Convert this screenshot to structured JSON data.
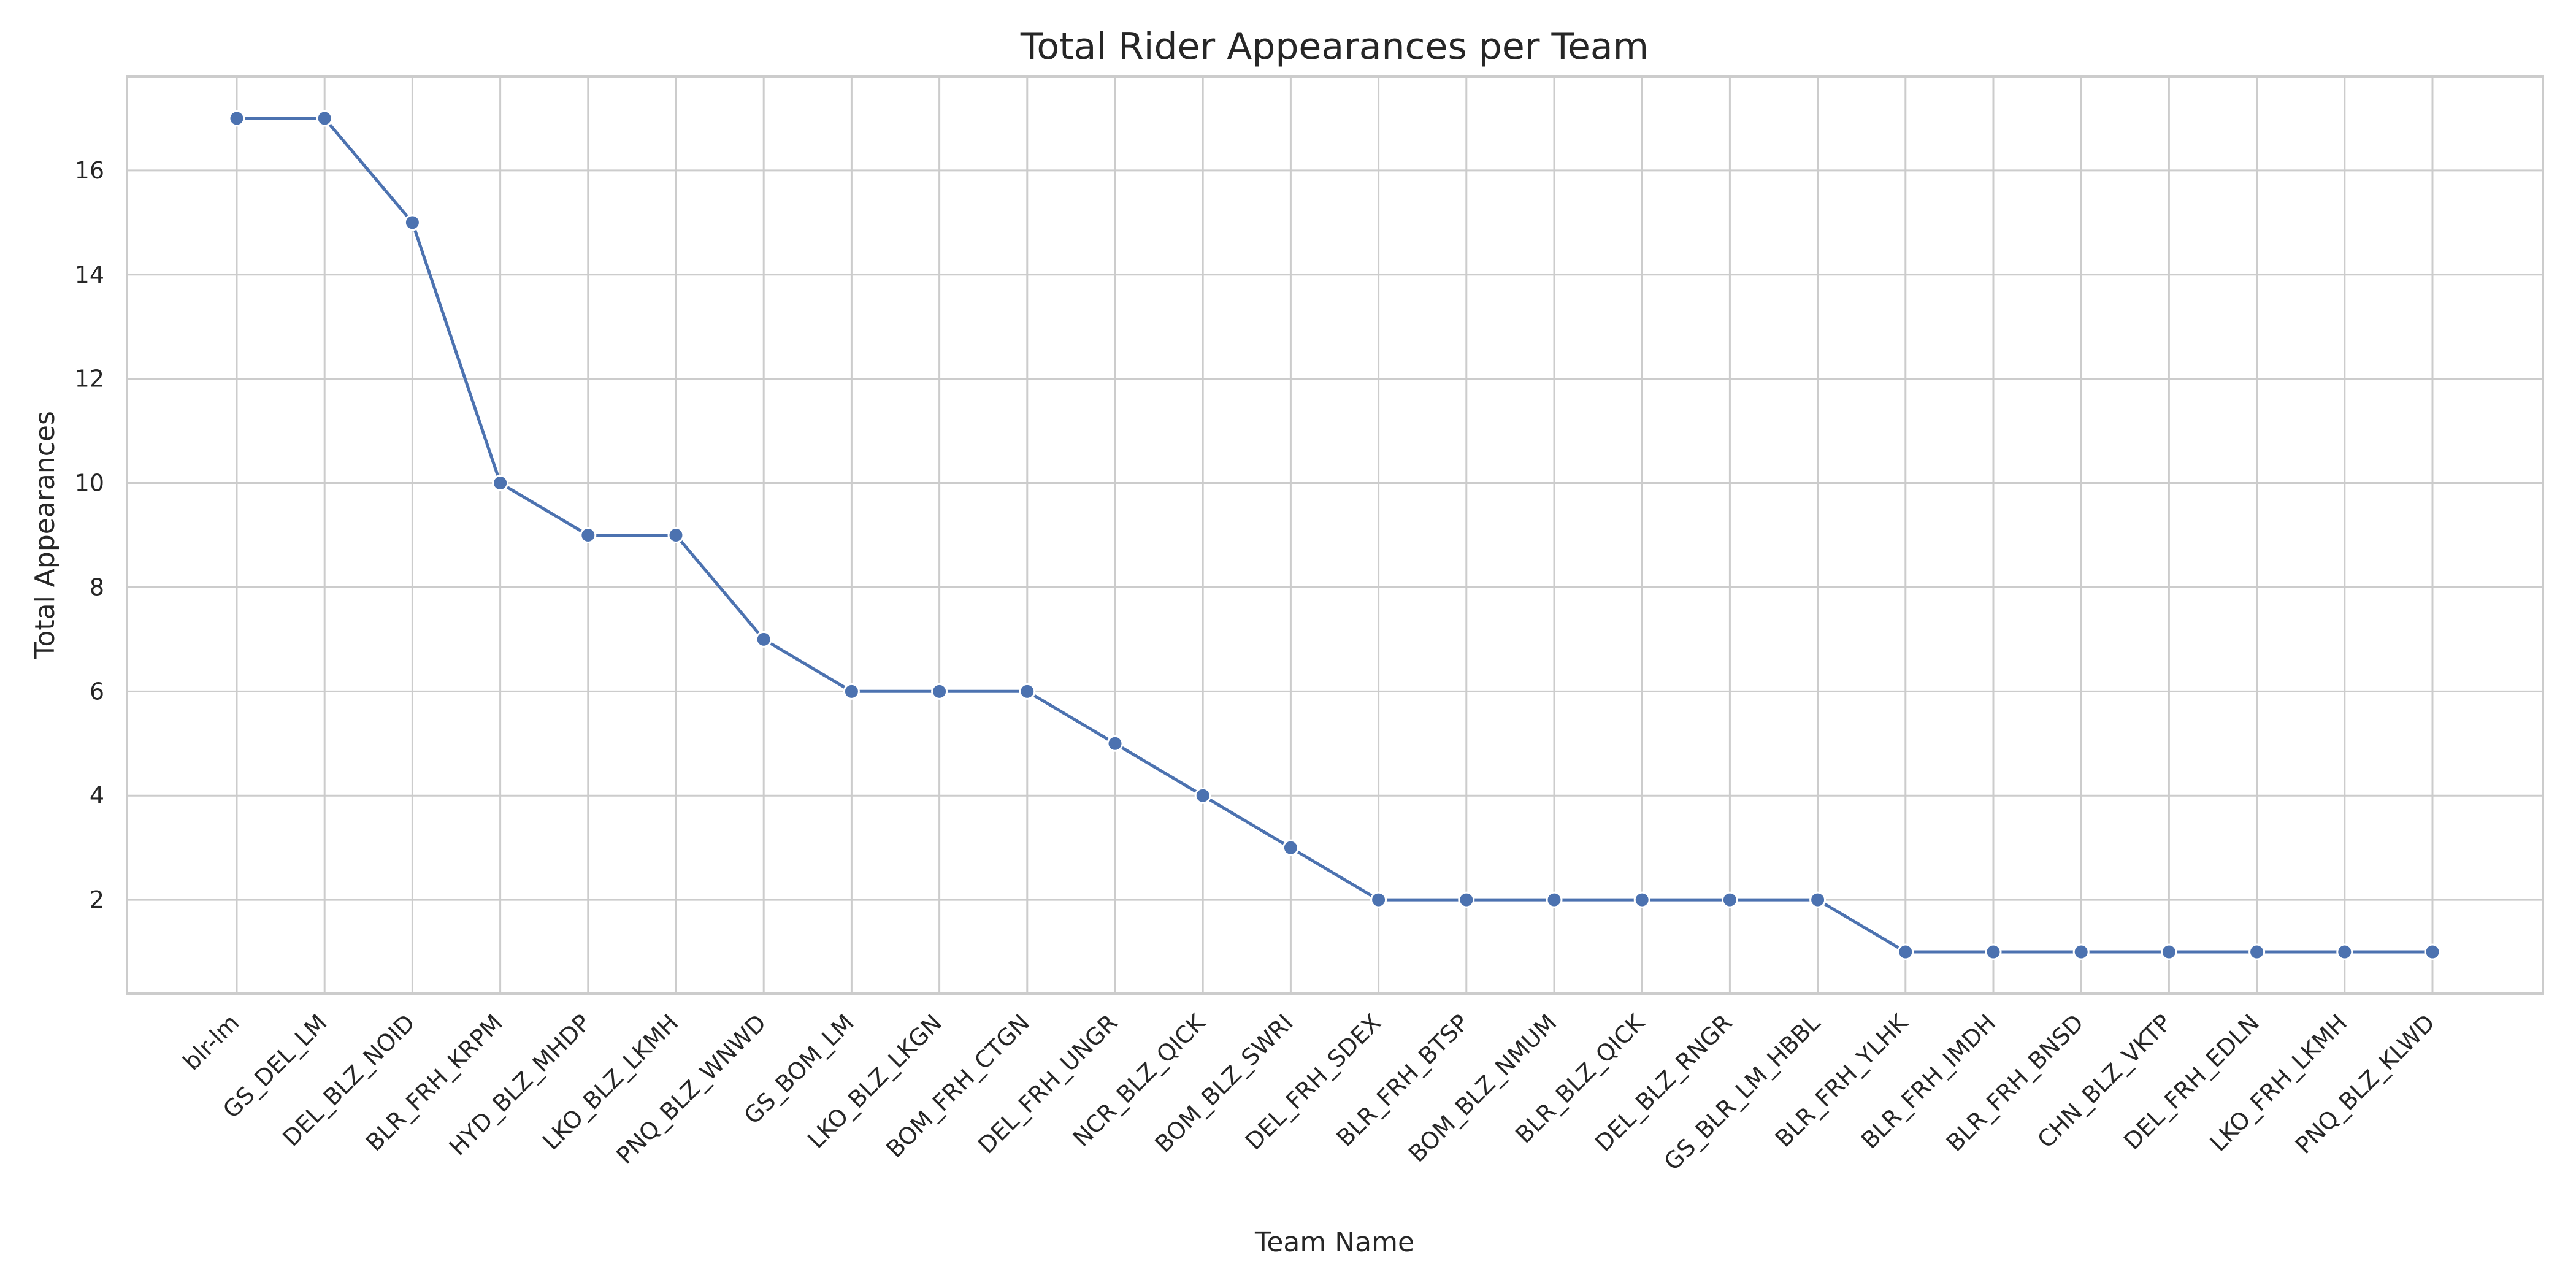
{
  "chart_data": {
    "type": "line",
    "title": "Total Rider Appearances per Team",
    "xlabel": "Team Name",
    "ylabel": "Total Appearances",
    "categories": [
      "blr-lm",
      "GS_DEL_LM",
      "DEL_BLZ_NOID",
      "BLR_FRH_KRPM",
      "HYD_BLZ_MHDP",
      "LKO_BLZ_LKMH",
      "PNQ_BLZ_WNWD",
      "GS_BOM_LM",
      "LKO_BLZ_LKGN",
      "BOM_FRH_CTGN",
      "DEL_FRH_UNGR",
      "NCR_BLZ_QICK",
      "BOM_BLZ_SWRI",
      "DEL_FRH_SDEX",
      "BLR_FRH_BTSP",
      "BOM_BLZ_NMUM",
      "BLR_BLZ_QICK",
      "DEL_BLZ_RNGR",
      "GS_BLR_LM_HBBL",
      "BLR_FRH_YLHK",
      "BLR_FRH_IMDH",
      "BLR_FRH_BNSD",
      "CHN_BLZ_VKTP",
      "DEL_FRH_EDLN",
      "LKO_FRH_LKMH",
      "PNQ_BLZ_KLWD"
    ],
    "values": [
      17,
      17,
      15,
      10,
      9,
      9,
      7,
      6,
      6,
      6,
      5,
      4,
      3,
      2,
      2,
      2,
      2,
      2,
      2,
      1,
      1,
      1,
      1,
      1,
      1,
      1
    ],
    "yticks": [
      2,
      4,
      6,
      8,
      10,
      12,
      14,
      16
    ],
    "ylim": [
      0.2,
      17.8
    ],
    "grid": true,
    "color": "#4c72b0"
  }
}
